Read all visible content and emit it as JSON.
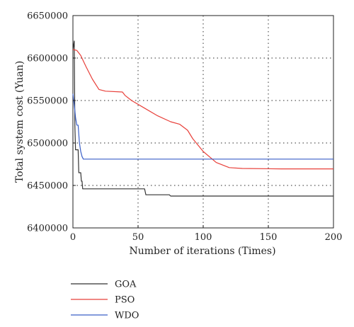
{
  "chart_data": {
    "type": "line",
    "title": "",
    "xlabel": "Number of iterations (Times)",
    "ylabel": "Total system cost (Yuan)",
    "xlim": [
      0,
      200
    ],
    "ylim": [
      6400000,
      6650000
    ],
    "x_ticks": [
      "0",
      "50",
      "100",
      "150",
      "200"
    ],
    "y_ticks": [
      "6400000",
      "6450000",
      "6500000",
      "6550000",
      "6600000",
      "6650000"
    ],
    "grid": true,
    "legend_position": "below-left",
    "series": [
      {
        "name": "GOA",
        "color": "#333333",
        "points": [
          [
            0,
            6610000
          ],
          [
            1,
            6620000
          ],
          [
            1.5,
            6520000
          ],
          [
            2,
            6492000
          ],
          [
            4,
            6492000
          ],
          [
            4.5,
            6465000
          ],
          [
            6,
            6465000
          ],
          [
            6.5,
            6455000
          ],
          [
            7,
            6455000
          ],
          [
            7.5,
            6446000
          ],
          [
            55,
            6446000
          ],
          [
            56,
            6439000
          ],
          [
            74,
            6439000
          ],
          [
            75,
            6437500
          ],
          [
            200,
            6437500
          ]
        ]
      },
      {
        "name": "PSO",
        "color": "#e8403a",
        "points": [
          [
            0,
            6610000
          ],
          [
            3,
            6609000
          ],
          [
            6,
            6603000
          ],
          [
            10,
            6590000
          ],
          [
            15,
            6575000
          ],
          [
            20,
            6563000
          ],
          [
            25,
            6561000
          ],
          [
            38,
            6560000
          ],
          [
            40,
            6556000
          ],
          [
            45,
            6550000
          ],
          [
            55,
            6541000
          ],
          [
            65,
            6532000
          ],
          [
            75,
            6525000
          ],
          [
            82,
            6522000
          ],
          [
            88,
            6515000
          ],
          [
            92,
            6505000
          ],
          [
            100,
            6490000
          ],
          [
            110,
            6477000
          ],
          [
            120,
            6471000
          ],
          [
            130,
            6470000
          ],
          [
            160,
            6469500
          ],
          [
            200,
            6469500
          ]
        ]
      },
      {
        "name": "WDO",
        "color": "#3a5fc8",
        "points": [
          [
            0,
            6558000
          ],
          [
            1,
            6545000
          ],
          [
            2,
            6530000
          ],
          [
            3,
            6521000
          ],
          [
            4,
            6521000
          ],
          [
            5,
            6500000
          ],
          [
            6,
            6490000
          ],
          [
            7,
            6484000
          ],
          [
            8,
            6481000
          ],
          [
            200,
            6481000
          ]
        ]
      }
    ]
  }
}
